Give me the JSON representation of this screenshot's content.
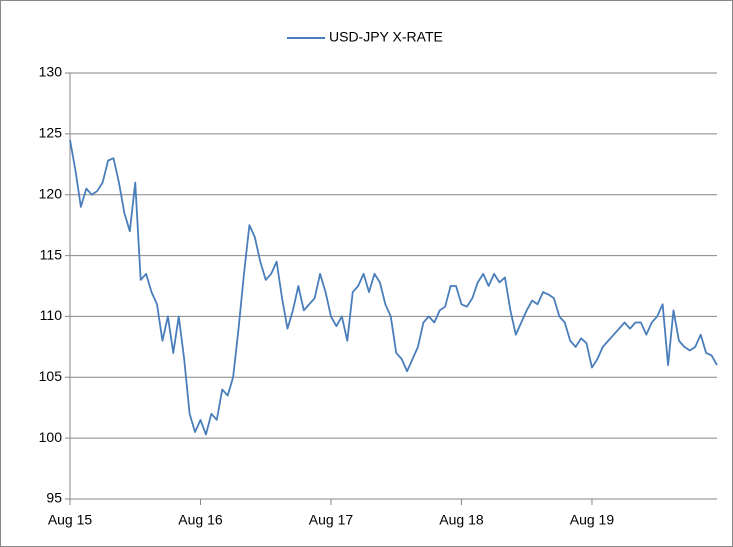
{
  "chart_data": {
    "type": "line",
    "categories": [
      "Aug 15",
      null,
      null,
      null,
      null,
      null,
      null,
      null,
      null,
      null,
      null,
      null,
      null,
      null,
      null,
      null,
      null,
      null,
      null,
      null,
      null,
      null,
      null,
      null,
      "Aug 16",
      null,
      null,
      null,
      null,
      null,
      null,
      null,
      null,
      null,
      null,
      null,
      null,
      null,
      null,
      null,
      null,
      null,
      null,
      null,
      null,
      null,
      null,
      null,
      "Aug 17",
      null,
      null,
      null,
      null,
      null,
      null,
      null,
      null,
      null,
      null,
      null,
      null,
      null,
      null,
      null,
      null,
      null,
      null,
      null,
      null,
      null,
      null,
      null,
      "Aug 18",
      null,
      null,
      null,
      null,
      null,
      null,
      null,
      null,
      null,
      null,
      null,
      null,
      null,
      null,
      null,
      null,
      null,
      null,
      null,
      null,
      null,
      null,
      null,
      "Aug 19",
      null,
      null,
      null,
      null,
      null,
      null,
      null,
      null,
      null,
      null,
      null,
      null,
      null,
      null,
      null,
      null,
      null,
      null,
      null,
      null,
      null,
      null,
      null
    ],
    "series": [
      {
        "name": "USD-JPY X-RATE",
        "color": "#4a7ebb",
        "values": [
          124.5,
          122,
          119,
          120.5,
          120,
          120.3,
          121,
          122.8,
          123,
          121,
          118.5,
          117,
          121,
          113,
          113.5,
          112,
          111,
          108,
          110,
          107,
          110,
          106.5,
          102,
          100.5,
          101.5,
          100.3,
          102,
          101.5,
          104,
          103.5,
          105,
          109,
          113.5,
          117.5,
          116.5,
          114.5,
          113,
          113.5,
          114.5,
          111.5,
          109,
          110.5,
          112.5,
          110.5,
          111,
          111.5,
          113.5,
          112,
          110,
          109.2,
          110,
          108,
          112,
          112.5,
          113.5,
          112,
          113.5,
          112.8,
          111,
          110,
          107,
          106.5,
          105.5,
          106.5,
          107.5,
          109.5,
          110,
          109.5,
          110.5,
          110.8,
          112.5,
          112.5,
          111,
          110.8,
          111.5,
          112.8,
          113.5,
          112.5,
          113.5,
          112.8,
          113.2,
          110.5,
          108.5,
          109.5,
          110.5,
          111.3,
          111,
          112,
          111.8,
          111.5,
          110,
          109.5,
          108,
          107.5,
          108.2,
          107.8,
          105.8,
          106.5,
          107.5,
          108,
          108.5,
          109,
          109.5,
          109,
          109.5,
          109.5,
          108.5,
          109.5,
          110,
          111,
          106,
          110.5,
          108,
          107.5,
          107.2,
          107.5,
          108.5,
          107,
          106.8,
          106
        ]
      }
    ],
    "ylim": [
      95,
      130
    ],
    "yticks": [
      95,
      100,
      105,
      110,
      115,
      120,
      125,
      130
    ],
    "grid": true,
    "legend": "top"
  }
}
